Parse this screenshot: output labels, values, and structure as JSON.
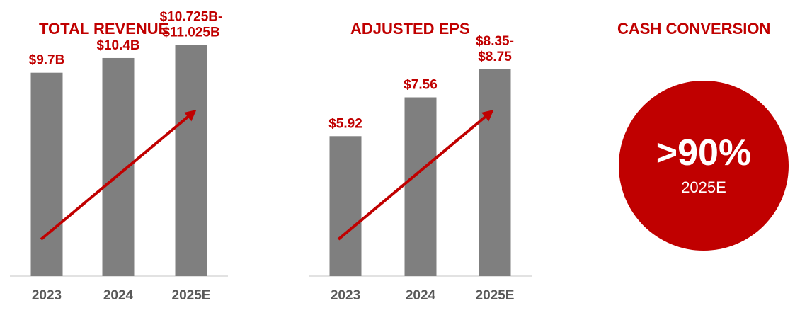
{
  "colors": {
    "accent": "#c00000",
    "bar": "#7f7f7f",
    "axis": "#d9d9d9",
    "tick": "#595959"
  },
  "chart_data": [
    {
      "type": "bar",
      "title": "TOTAL REVENUE",
      "categories": [
        "2023",
        "2024",
        "2025E"
      ],
      "values": [
        9.7,
        10.4,
        10.725
      ],
      "range_high": [
        null,
        null,
        11.025
      ],
      "data_labels": [
        [
          "$9.7B"
        ],
        [
          "$10.4B"
        ],
        [
          "$10.725B-",
          "$11.025B"
        ]
      ],
      "trend_arrow": true,
      "grid": false
    },
    {
      "type": "bar",
      "title": "ADJUSTED EPS",
      "categories": [
        "2023",
        "2024",
        "2025E"
      ],
      "values": [
        5.92,
        7.56,
        8.35
      ],
      "range_high": [
        null,
        null,
        8.75
      ],
      "data_labels": [
        [
          "$5.92"
        ],
        [
          "$7.56"
        ],
        [
          "$8.35-",
          "$8.75"
        ]
      ],
      "trend_arrow": true,
      "grid": false
    }
  ],
  "cash_conversion": {
    "title": "CASH CONVERSION",
    "value": ">90%",
    "sublabel": "2025E"
  }
}
